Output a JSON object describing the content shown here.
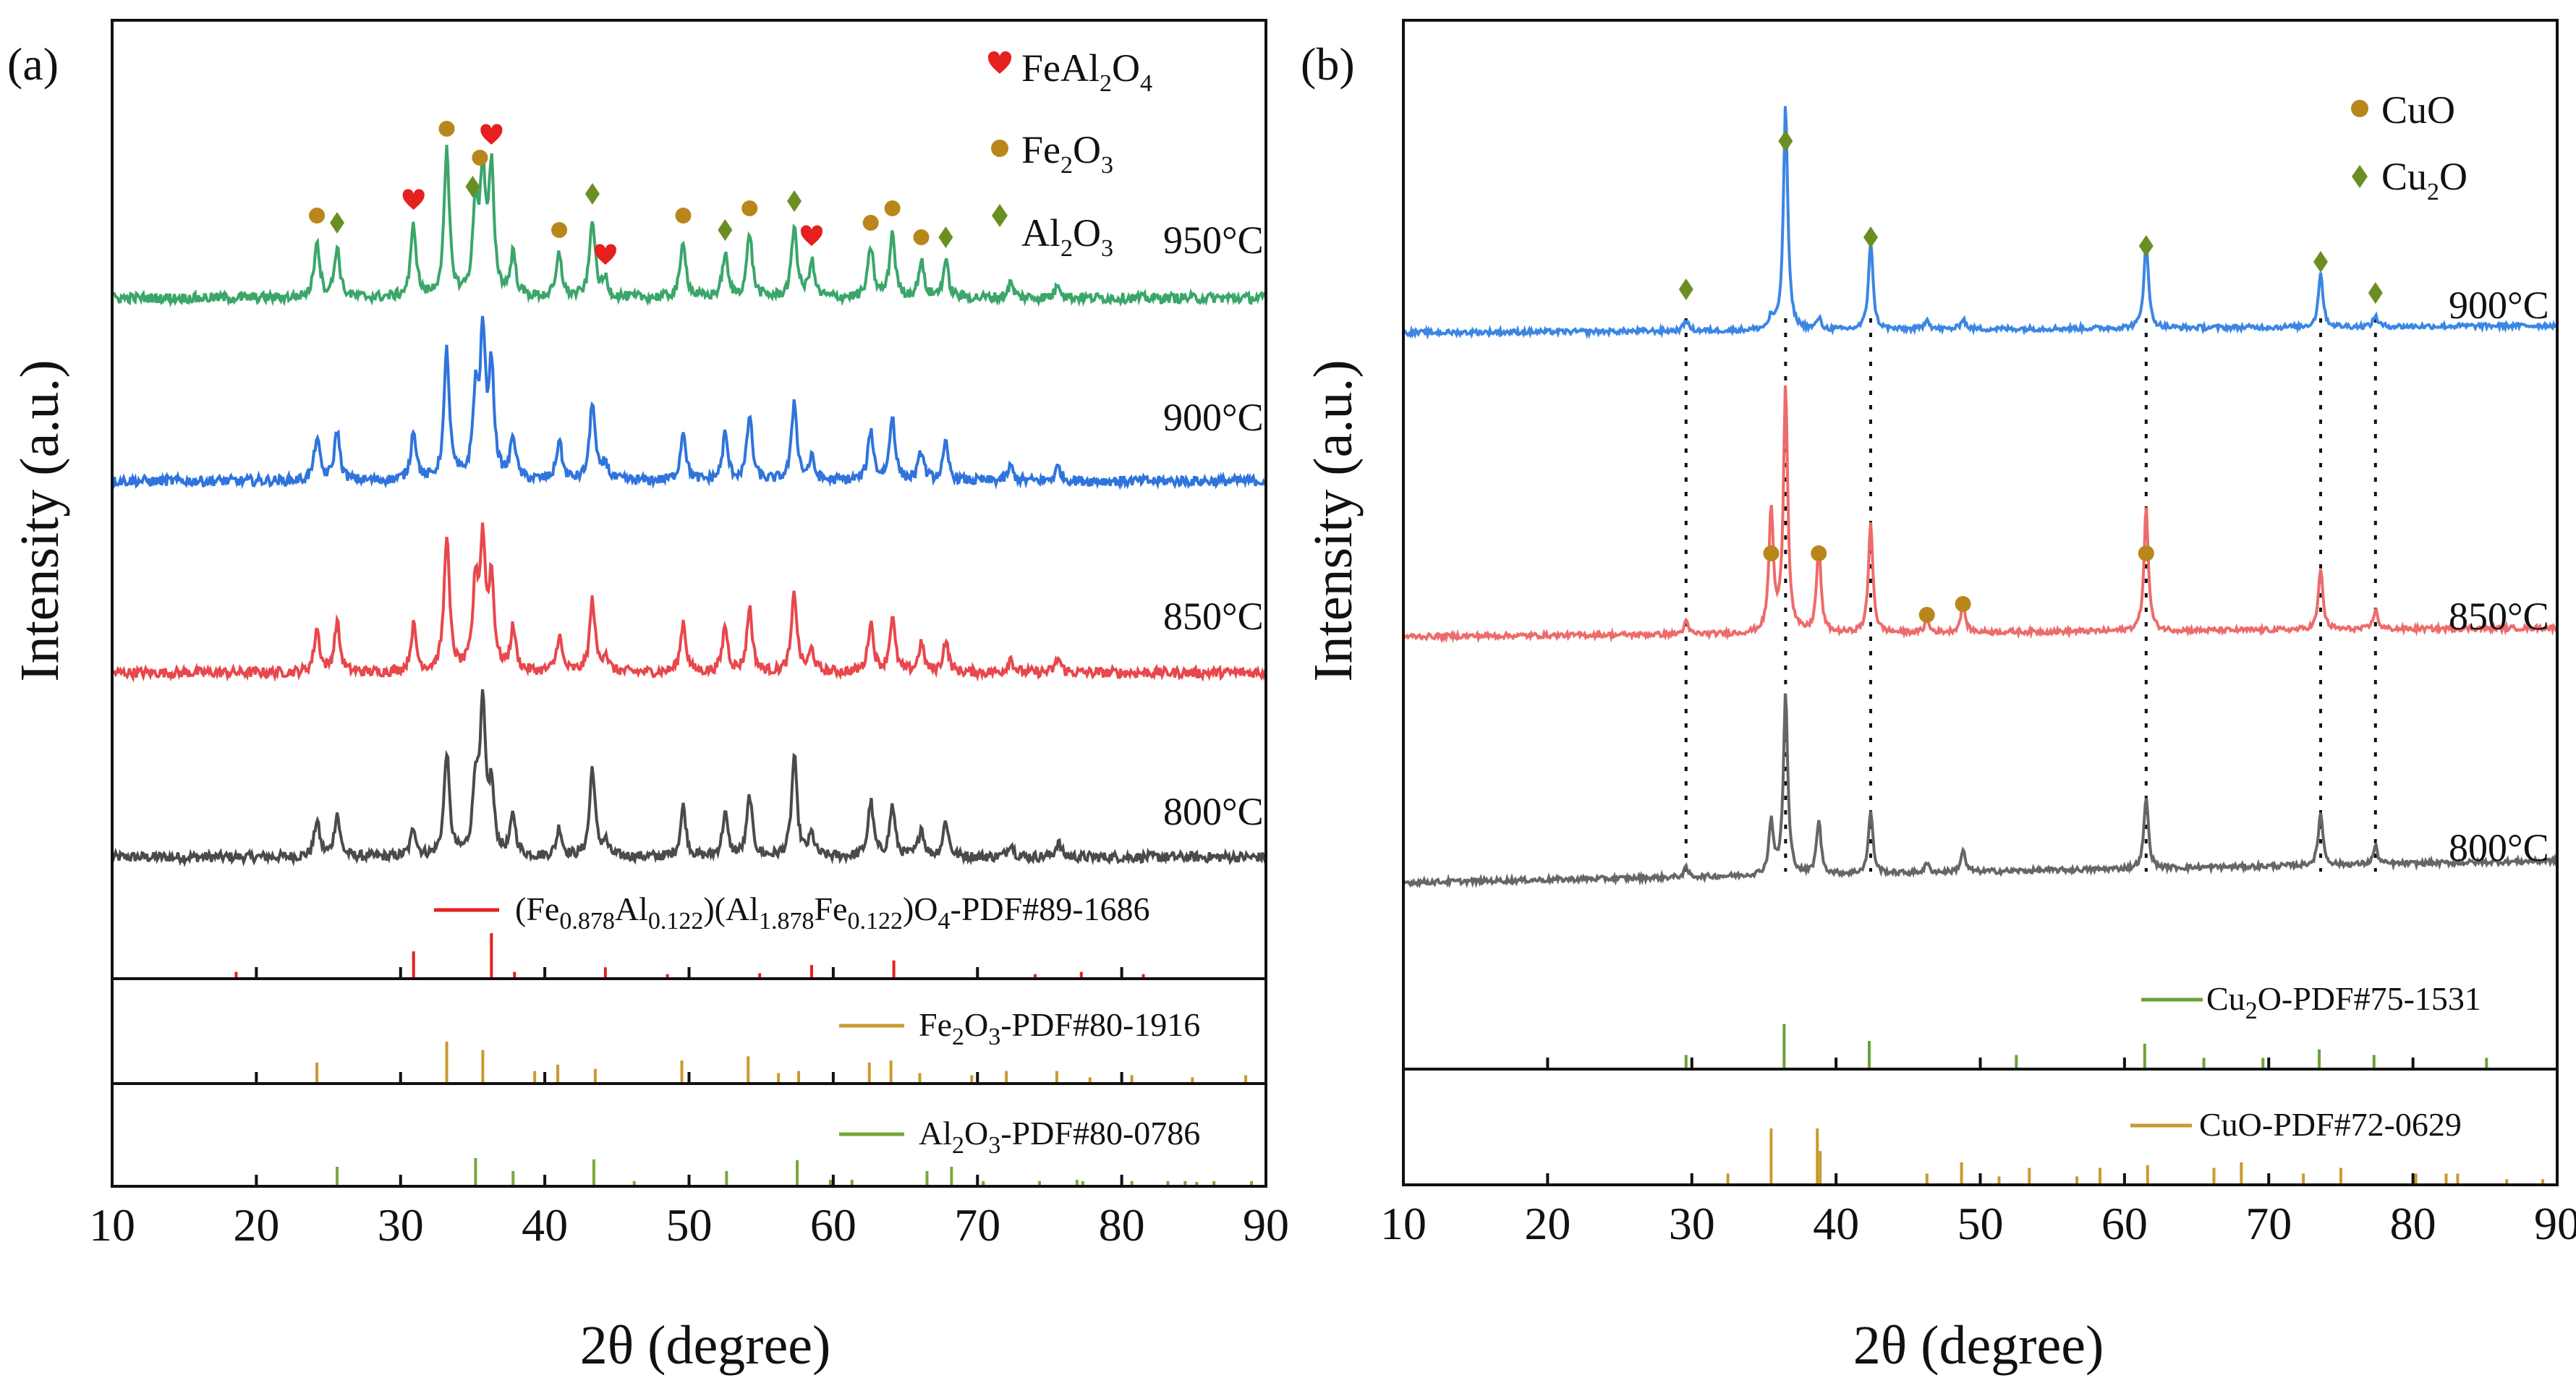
{
  "chart_data": [
    {
      "panel_label": "(a)",
      "type": "line",
      "xlabel": "2θ (degree)",
      "ylabel": "Intensity (a.u.)",
      "xlim": [
        10,
        90
      ],
      "xticks": [
        10,
        20,
        30,
        40,
        50,
        60,
        70,
        80,
        90
      ],
      "peaks": [
        24.2,
        25.6,
        30.9,
        33.2,
        35.2,
        35.7,
        36.3,
        37.8,
        41.0,
        43.3,
        44.2,
        49.6,
        52.5,
        54.2,
        57.3,
        58.5,
        62.6,
        64.1,
        66.1,
        67.8,
        72.3,
        75.6
      ],
      "series": [
        {
          "name": "800°C",
          "color": "#4a4a4a",
          "heights": [
            0.25,
            0.3,
            0.2,
            0.72,
            0.5,
            1.0,
            0.45,
            0.28,
            0.2,
            0.62,
            0.1,
            0.35,
            0.3,
            0.42,
            0.7,
            0.15,
            0.38,
            0.35,
            0.2,
            0.25,
            0.1,
            0.1
          ]
        },
        {
          "name": "850°C",
          "color": "#e8474c",
          "heights": [
            0.3,
            0.35,
            0.32,
            0.95,
            0.58,
            0.85,
            0.62,
            0.3,
            0.25,
            0.5,
            0.12,
            0.35,
            0.32,
            0.45,
            0.55,
            0.15,
            0.35,
            0.38,
            0.2,
            0.22,
            0.1,
            0.1
          ]
        },
        {
          "name": "900°C",
          "color": "#2f74dc",
          "heights": [
            0.3,
            0.35,
            0.35,
            0.9,
            0.55,
            0.95,
            0.75,
            0.3,
            0.28,
            0.55,
            0.12,
            0.35,
            0.32,
            0.45,
            0.55,
            0.15,
            0.35,
            0.45,
            0.2,
            0.25,
            0.1,
            0.1
          ]
        },
        {
          "name": "950°C",
          "color": "#3aa66a",
          "heights": [
            0.4,
            0.35,
            0.5,
            1.0,
            0.6,
            0.8,
            0.85,
            0.3,
            0.3,
            0.55,
            0.12,
            0.4,
            0.3,
            0.45,
            0.5,
            0.25,
            0.35,
            0.45,
            0.25,
            0.25,
            0.1,
            0.1
          ]
        }
      ],
      "legend": [
        {
          "symbol": "heart",
          "color": "#e5201f",
          "formula": [
            "FeAl",
            "2",
            "O",
            "4"
          ]
        },
        {
          "symbol": "circle",
          "color": "#b8861b",
          "formula": [
            "Fe",
            "2",
            "O",
            "3"
          ]
        },
        {
          "symbol": "diamond",
          "color": "#6b8e23",
          "formula": [
            "Al",
            "2",
            "O",
            "3"
          ]
        }
      ],
      "markers": [
        {
          "x": 24.2,
          "type": "circle"
        },
        {
          "x": 25.6,
          "type": "diamond"
        },
        {
          "x": 30.9,
          "type": "heart"
        },
        {
          "x": 33.2,
          "type": "circle"
        },
        {
          "x": 35.0,
          "type": "diamond"
        },
        {
          "x": 35.5,
          "type": "circle"
        },
        {
          "x": 36.3,
          "type": "heart"
        },
        {
          "x": 41.0,
          "type": "circle"
        },
        {
          "x": 43.3,
          "type": "diamond"
        },
        {
          "x": 44.2,
          "type": "heart"
        },
        {
          "x": 49.6,
          "type": "circle"
        },
        {
          "x": 52.5,
          "type": "diamond"
        },
        {
          "x": 54.2,
          "type": "circle"
        },
        {
          "x": 57.3,
          "type": "diamond"
        },
        {
          "x": 58.5,
          "type": "heart"
        },
        {
          "x": 62.6,
          "type": "circle"
        },
        {
          "x": 64.1,
          "type": "circle"
        },
        {
          "x": 66.1,
          "type": "circle"
        },
        {
          "x": 67.8,
          "type": "diamond"
        }
      ],
      "references": [
        {
          "label": [
            "(Fe",
            "0.878",
            "Al",
            "0.122",
            ")(Al",
            "1.878",
            "Fe",
            "0.122",
            ")O",
            "4",
            "-PDF#89-1686"
          ],
          "color": "#e5201f",
          "lines": [
            [
              18.6,
              0.15
            ],
            [
              30.9,
              0.6
            ],
            [
              36.3,
              1.0
            ],
            [
              37.9,
              0.15
            ],
            [
              44.2,
              0.25
            ],
            [
              48.5,
              0.1
            ],
            [
              54.9,
              0.12
            ],
            [
              58.5,
              0.3
            ],
            [
              64.2,
              0.4
            ],
            [
              74.0,
              0.1
            ],
            [
              77.2,
              0.15
            ],
            [
              81.5,
              0.1
            ]
          ]
        },
        {
          "label": [
            "Fe",
            "2",
            "O",
            "3",
            "-PDF#80-1916"
          ],
          "color": "#c99a2e",
          "lines": [
            [
              24.2,
              0.5
            ],
            [
              33.2,
              1.0
            ],
            [
              35.7,
              0.8
            ],
            [
              39.3,
              0.3
            ],
            [
              40.9,
              0.45
            ],
            [
              43.5,
              0.35
            ],
            [
              49.5,
              0.55
            ],
            [
              54.1,
              0.65
            ],
            [
              56.2,
              0.25
            ],
            [
              57.6,
              0.3
            ],
            [
              62.5,
              0.5
            ],
            [
              64.0,
              0.55
            ],
            [
              66.0,
              0.25
            ],
            [
              69.6,
              0.2
            ],
            [
              72.0,
              0.3
            ],
            [
              75.5,
              0.3
            ],
            [
              77.8,
              0.15
            ],
            [
              80.7,
              0.2
            ],
            [
              84.9,
              0.15
            ],
            [
              88.6,
              0.2
            ]
          ]
        },
        {
          "label": [
            "Al",
            "2",
            "O",
            "3",
            "-PDF#80-0786"
          ],
          "color": "#7aa73a",
          "lines": [
            [
              25.6,
              0.45
            ],
            [
              35.2,
              0.65
            ],
            [
              37.8,
              0.35
            ],
            [
              43.4,
              0.62
            ],
            [
              46.2,
              0.12
            ],
            [
              52.6,
              0.35
            ],
            [
              57.5,
              0.6
            ],
            [
              59.8,
              0.15
            ],
            [
              61.3,
              0.15
            ],
            [
              66.5,
              0.35
            ],
            [
              68.2,
              0.45
            ],
            [
              70.4,
              0.12
            ],
            [
              74.3,
              0.12
            ],
            [
              76.9,
              0.15
            ],
            [
              77.3,
              0.12
            ],
            [
              80.7,
              0.12
            ],
            [
              83.2,
              0.12
            ],
            [
              84.4,
              0.12
            ],
            [
              85.2,
              0.1
            ],
            [
              86.4,
              0.12
            ],
            [
              89.0,
              0.12
            ]
          ]
        }
      ]
    },
    {
      "panel_label": "(b)",
      "type": "line",
      "xlabel": "2θ (degree)",
      "ylabel": "Intensity (a.u.)",
      "xlim": [
        10,
        90
      ],
      "xticks": [
        10,
        20,
        30,
        40,
        50,
        60,
        70,
        80,
        90
      ],
      "peaks": [
        29.6,
        35.5,
        36.5,
        38.8,
        42.4,
        46.3,
        48.8,
        61.5,
        73.6,
        77.4
      ],
      "series": [
        {
          "name": "800°C",
          "color": "#666666",
          "heights": [
            0.05,
            0.3,
            1.0,
            0.3,
            0.35,
            0.05,
            0.12,
            0.4,
            0.3,
            0.1
          ]
        },
        {
          "name": "850°C",
          "color": "#ee6b6b",
          "heights": [
            0.05,
            0.5,
            1.0,
            0.35,
            0.45,
            0.05,
            0.12,
            0.5,
            0.25,
            0.08
          ]
        },
        {
          "name": "900°C",
          "color": "#3b86e3",
          "heights": [
            0.05,
            0.05,
            1.0,
            0.05,
            0.4,
            0.05,
            0.05,
            0.4,
            0.25,
            0.05
          ]
        }
      ],
      "legend": [
        {
          "symbol": "circle",
          "color": "#b8861b",
          "formula": [
            "CuO",
            "",
            "",
            ""
          ]
        },
        {
          "symbol": "diamond",
          "color": "#6b8e23",
          "formula": [
            "Cu",
            "2",
            "O",
            ""
          ]
        }
      ],
      "markers_900": [
        29.6,
        36.5,
        42.4,
        61.5,
        73.6,
        77.4
      ],
      "markers_850": [
        35.5,
        38.8,
        46.3,
        48.8,
        61.5
      ],
      "dotted_lines": [
        29.6,
        36.5,
        42.4,
        61.5,
        73.6,
        77.4
      ],
      "references": [
        {
          "label": [
            "Cu",
            "2",
            "O-PDF#75-1531",
            "",
            "",
            "",
            "",
            "",
            "",
            "",
            ""
          ],
          "color": "#6aa23a",
          "lines": [
            [
              29.6,
              0.25
            ],
            [
              36.4,
              0.8
            ],
            [
              42.3,
              0.5
            ],
            [
              52.5,
              0.25
            ],
            [
              61.4,
              0.45
            ],
            [
              65.5,
              0.2
            ],
            [
              69.6,
              0.2
            ],
            [
              73.5,
              0.35
            ],
            [
              77.3,
              0.25
            ],
            [
              85.1,
              0.2
            ]
          ]
        },
        {
          "label": [
            "CuO-PDF#72-0629",
            "",
            "",
            "",
            "",
            "",
            "",
            "",
            "",
            "",
            ""
          ],
          "color": "#c99a2e",
          "lines": [
            [
              32.5,
              0.2
            ],
            [
              35.5,
              1.0
            ],
            [
              38.7,
              1.0
            ],
            [
              38.9,
              0.6
            ],
            [
              46.3,
              0.2
            ],
            [
              48.7,
              0.4
            ],
            [
              51.3,
              0.15
            ],
            [
              53.4,
              0.3
            ],
            [
              56.7,
              0.15
            ],
            [
              58.3,
              0.3
            ],
            [
              61.6,
              0.35
            ],
            [
              66.2,
              0.3
            ],
            [
              68.1,
              0.4
            ],
            [
              72.4,
              0.2
            ],
            [
              75.0,
              0.3
            ],
            [
              80.2,
              0.2
            ],
            [
              82.3,
              0.2
            ],
            [
              83.1,
              0.2
            ],
            [
              86.5,
              0.1
            ],
            [
              89.0,
              0.1
            ]
          ]
        }
      ]
    }
  ]
}
